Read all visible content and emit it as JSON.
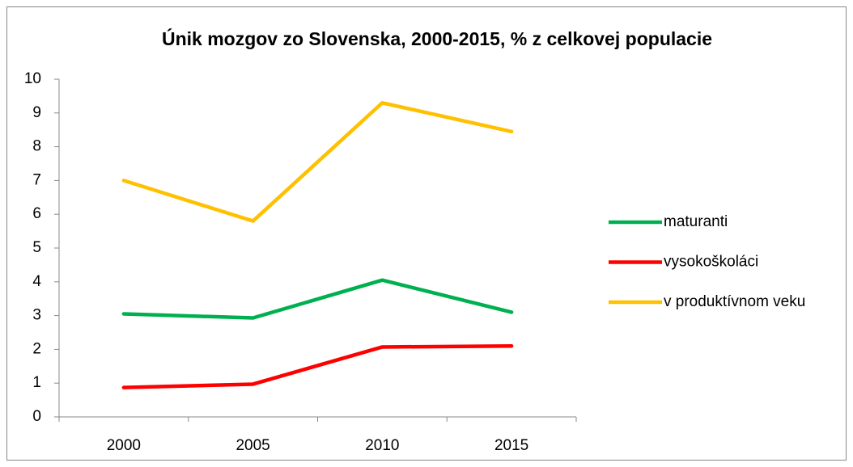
{
  "chart_data": {
    "type": "line",
    "title": "Únik mozgov zo Slovenska, 2000-2015, % z celkovej populacie",
    "categories": [
      "2000",
      "2005",
      "2010",
      "2015"
    ],
    "series": [
      {
        "name": "maturanti",
        "color": "#00b050",
        "values": [
          3.05,
          2.93,
          4.05,
          3.1
        ]
      },
      {
        "name": "vysokoškoláci",
        "color": "#ff0000",
        "values": [
          0.87,
          0.97,
          2.07,
          2.1
        ]
      },
      {
        "name": "v produktívnom veku",
        "color": "#ffc000",
        "values": [
          7.0,
          5.8,
          9.3,
          8.45
        ]
      }
    ],
    "ylim": [
      0,
      10
    ],
    "yticks": [
      0,
      1,
      2,
      3,
      4,
      5,
      6,
      7,
      8,
      9,
      10
    ],
    "grid": false,
    "legend": "right"
  }
}
